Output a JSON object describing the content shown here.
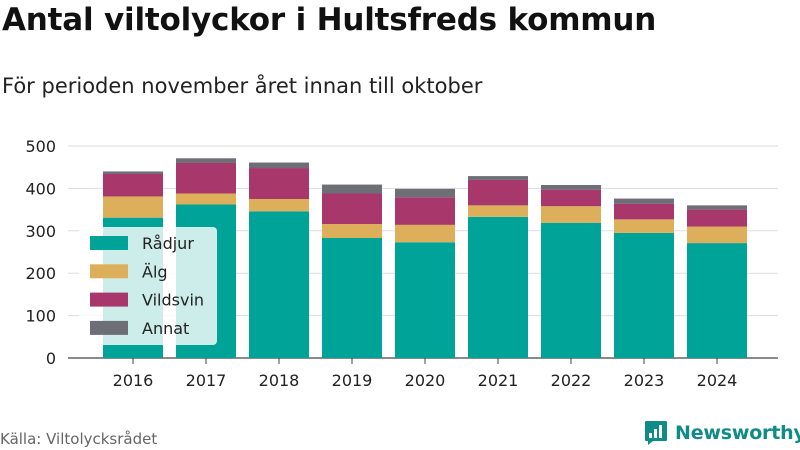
{
  "title": "Antal viltolyckor i Hultsfreds kommun",
  "subtitle": "För perioden november året innan till oktober",
  "source": "Källa: Viltolycksrådet",
  "brand": {
    "name": "Newsworthy",
    "icon": "newsworthy-logo-icon",
    "color": "#0f8c87"
  },
  "chart_data": {
    "type": "bar",
    "stacked": true,
    "categories": [
      "2016",
      "2017",
      "2018",
      "2019",
      "2020",
      "2021",
      "2022",
      "2023",
      "2024"
    ],
    "series": [
      {
        "name": "Rådjur",
        "color": "#00a398",
        "values": [
          331,
          362,
          346,
          283,
          273,
          333,
          319,
          295,
          271
        ]
      },
      {
        "name": "Älg",
        "color": "#deaf5b",
        "values": [
          50,
          26,
          29,
          33,
          41,
          27,
          39,
          32,
          39
        ]
      },
      {
        "name": "Vildsvin",
        "color": "#a8386b",
        "values": [
          53,
          72,
          73,
          72,
          65,
          60,
          39,
          37,
          40
        ]
      },
      {
        "name": "Annat",
        "color": "#6e6e76",
        "values": [
          6,
          11,
          13,
          21,
          20,
          9,
          11,
          12,
          10
        ]
      }
    ],
    "y_ticks": [
      0,
      100,
      200,
      300,
      400,
      500
    ],
    "ylim": [
      0,
      500
    ],
    "grid": true,
    "legend_position": "left, overlapping bars"
  }
}
